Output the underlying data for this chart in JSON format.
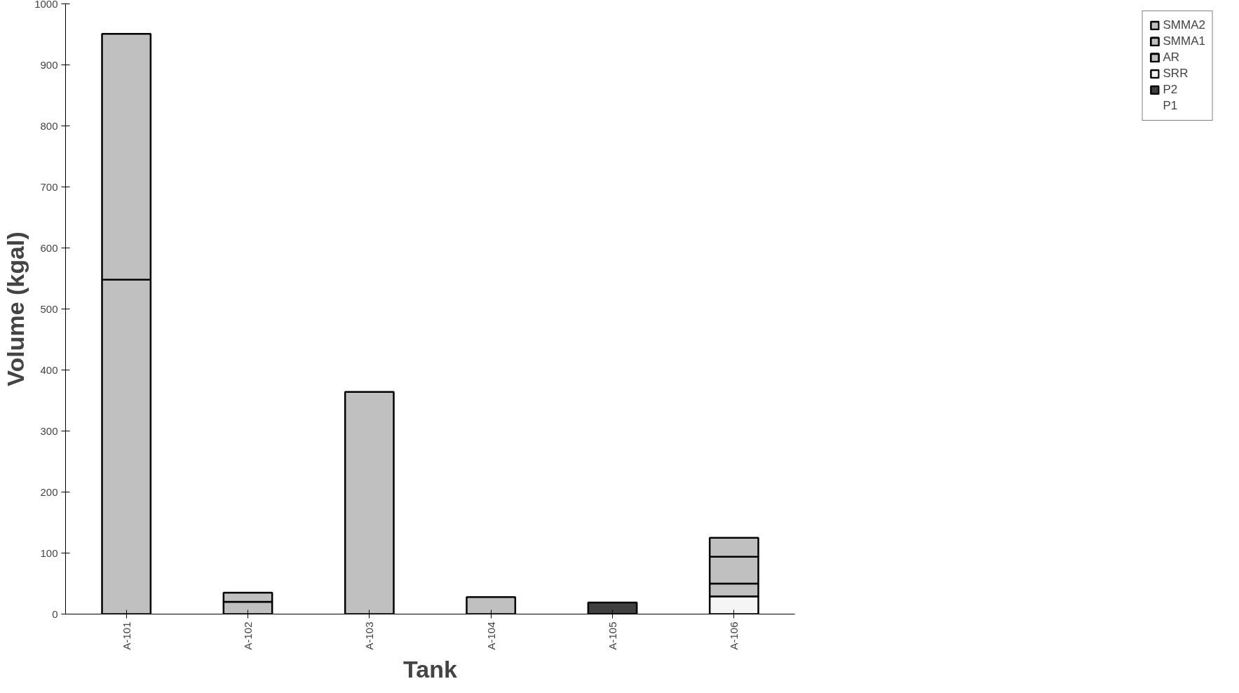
{
  "chart_data": {
    "type": "bar",
    "stacked": true,
    "xlabel": "Tank",
    "ylabel": "Volume (kgal)",
    "categories": [
      "A-101",
      "A-102",
      "A-103",
      "A-104",
      "A-105",
      "A-106"
    ],
    "ylim": [
      0,
      1000
    ],
    "yticks": [
      0,
      100,
      200,
      300,
      400,
      500,
      600,
      700,
      800,
      900,
      1000
    ],
    "grid": false,
    "legend": "right",
    "series": [
      {
        "name": "P1",
        "color": "#404040",
        "values": [
          null,
          null,
          null,
          null,
          null,
          null
        ]
      },
      {
        "name": "P2",
        "color": "#404040",
        "values": [
          null,
          null,
          null,
          null,
          19,
          null
        ]
      },
      {
        "name": "SRR",
        "color": "#f5f5f5",
        "values": [
          null,
          null,
          null,
          null,
          null,
          29
        ]
      },
      {
        "name": "AR",
        "color": "#c0c0c0",
        "values": [
          548,
          20,
          364,
          28,
          null,
          21
        ]
      },
      {
        "name": "SMMA1",
        "color": "#c0c0c0",
        "values": [
          403,
          15,
          null,
          null,
          null,
          44
        ]
      },
      {
        "name": "SMMA2",
        "color": "#c0c0c0",
        "values": [
          null,
          null,
          null,
          null,
          null,
          31
        ]
      }
    ]
  }
}
